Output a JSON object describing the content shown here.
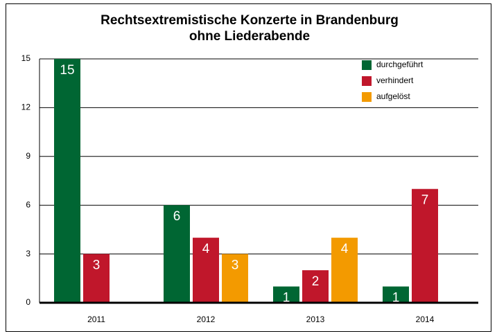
{
  "chart_data": {
    "type": "bar",
    "title": "Rechtsextremistische Konzerte in Brandenburg",
    "subtitle": "ohne Liederabende",
    "categories": [
      "2011",
      "2012",
      "2013",
      "2014"
    ],
    "series": [
      {
        "name": "durchgeführt",
        "color": "#006633",
        "values": [
          15,
          6,
          1,
          1
        ]
      },
      {
        "name": "verhindert",
        "color": "#c0172b",
        "values": [
          3,
          4,
          2,
          7
        ]
      },
      {
        "name": "aufgelöst",
        "color": "#f39a00",
        "values": [
          null,
          3,
          4,
          null
        ]
      }
    ],
    "ylim": [
      0,
      15
    ],
    "yticks": [
      0,
      3,
      6,
      9,
      12,
      15
    ],
    "grid": true,
    "legend": "upper right"
  }
}
